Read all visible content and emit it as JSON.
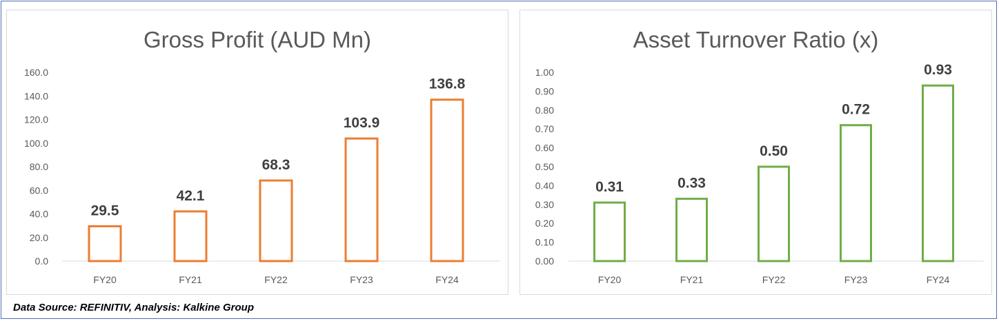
{
  "chart_data": [
    {
      "type": "bar",
      "title": "Gross Profit (AUD Mn)",
      "categories": [
        "FY20",
        "FY21",
        "FY22",
        "FY23",
        "FY24"
      ],
      "values": [
        29.5,
        42.1,
        68.3,
        103.9,
        136.8
      ],
      "value_labels": [
        "29.5",
        "42.1",
        "68.3",
        "103.9",
        "136.8"
      ],
      "ylim": [
        0,
        160
      ],
      "yticks": [
        "0.0",
        "20.0",
        "40.0",
        "60.0",
        "80.0",
        "100.0",
        "120.0",
        "140.0",
        "160.0"
      ],
      "bar_style": "outline",
      "color": "#ED7D31",
      "grid": false,
      "xlabel": "",
      "ylabel": ""
    },
    {
      "type": "bar",
      "title": "Asset Turnover Ratio (x)",
      "categories": [
        "FY20",
        "FY21",
        "FY22",
        "FY23",
        "FY24"
      ],
      "values": [
        0.31,
        0.33,
        0.5,
        0.72,
        0.93
      ],
      "value_labels": [
        "0.31",
        "0.33",
        "0.50",
        "0.72",
        "0.93"
      ],
      "ylim": [
        0,
        1.0
      ],
      "yticks": [
        "0.00",
        "0.10",
        "0.20",
        "0.30",
        "0.40",
        "0.50",
        "0.60",
        "0.70",
        "0.80",
        "0.90",
        "1.00"
      ],
      "bar_style": "outline",
      "color": "#70AD47",
      "grid": false,
      "xlabel": "",
      "ylabel": ""
    }
  ],
  "footer": {
    "source_note": "Data Source: REFINITIV, Analysis: Kalkine Group"
  }
}
